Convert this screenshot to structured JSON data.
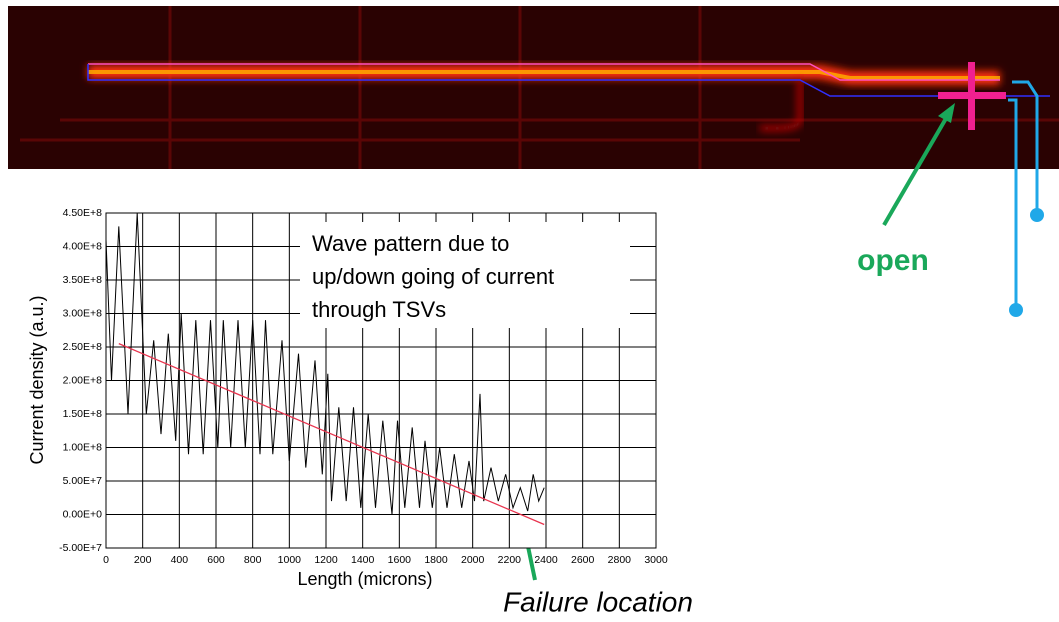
{
  "chart_data": {
    "type": "line",
    "x_label": "Length (microns)",
    "y_label": "Current density (a.u.)",
    "wave_note": [
      "Wave pattern due to",
      "up/down going of current",
      "through TSVs"
    ],
    "open_label": "open",
    "failure_label": "Failure location",
    "xlim": [
      0,
      3000
    ],
    "ylim": [
      -50000000.0,
      450000000.0
    ],
    "xticks": [
      0,
      200,
      400,
      600,
      800,
      1000,
      1200,
      1400,
      1600,
      1800,
      2000,
      2200,
      2400,
      2600,
      2800,
      3000
    ],
    "yticks": [
      {
        "value": -50000000.0,
        "label": "-5.00E+7"
      },
      {
        "value": 0,
        "label": "0.00E+0"
      },
      {
        "value": 50000000.0,
        "label": "5.00E+7"
      },
      {
        "value": 100000000.0,
        "label": "1.00E+8"
      },
      {
        "value": 150000000.0,
        "label": "1.50E+8"
      },
      {
        "value": 200000000.0,
        "label": "2.00E+8"
      },
      {
        "value": 250000000.0,
        "label": "2.50E+8"
      },
      {
        "value": 300000000.0,
        "label": "3.00E+8"
      },
      {
        "value": 350000000.0,
        "label": "3.50E+8"
      },
      {
        "value": 400000000.0,
        "label": "4.00E+8"
      },
      {
        "value": 450000000.0,
        "label": "4.50E+8"
      }
    ],
    "grid": true,
    "color": "#000000",
    "x": [
      0,
      30,
      70,
      120,
      170,
      220,
      260,
      300,
      340,
      380,
      410,
      450,
      490,
      530,
      570,
      610,
      640,
      680,
      720,
      760,
      800,
      840,
      870,
      910,
      960,
      1000,
      1050,
      1090,
      1140,
      1180,
      1210,
      1230,
      1270,
      1310,
      1350,
      1390,
      1430,
      1470,
      1510,
      1560,
      1590,
      1630,
      1670,
      1710,
      1740,
      1780,
      1820,
      1860,
      1900,
      1940,
      1980,
      2010,
      2040,
      2060,
      2100,
      2140,
      2180,
      2220,
      2260,
      2300,
      2330,
      2360,
      2390
    ],
    "values": [
      410000000.0,
      200000000.0,
      430000000.0,
      150000000.0,
      450000000.0,
      150000000.0,
      260000000.0,
      120000000.0,
      270000000.0,
      110000000.0,
      300000000.0,
      90000000.0,
      290000000.0,
      90000000.0,
      290000000.0,
      100000000.0,
      290000000.0,
      100000000.0,
      290000000.0,
      100000000.0,
      290000000.0,
      90000000.0,
      290000000.0,
      90000000.0,
      260000000.0,
      80000000.0,
      240000000.0,
      70000000.0,
      230000000.0,
      60000000.0,
      210000000.0,
      20000000.0,
      160000000.0,
      20000000.0,
      160000000.0,
      10000000.0,
      150000000.0,
      10000000.0,
      140000000.0,
      0,
      140000000.0,
      10000000.0,
      130000000.0,
      10000000.0,
      110000000.0,
      10000000.0,
      100000000.0,
      10000000.0,
      90000000.0,
      10000000.0,
      80000000.0,
      20000000.0,
      180000000.0,
      20000000.0,
      70000000.0,
      20000000.0,
      60000000.0,
      10000000.0,
      40000000.0,
      5000000.0,
      60000000.0,
      20000000.0,
      40000000.0
    ],
    "trend": {
      "color": "#e8344e",
      "x": [
        70,
        2390
      ],
      "values": [
        255000000.0,
        -15000000.0
      ]
    }
  }
}
